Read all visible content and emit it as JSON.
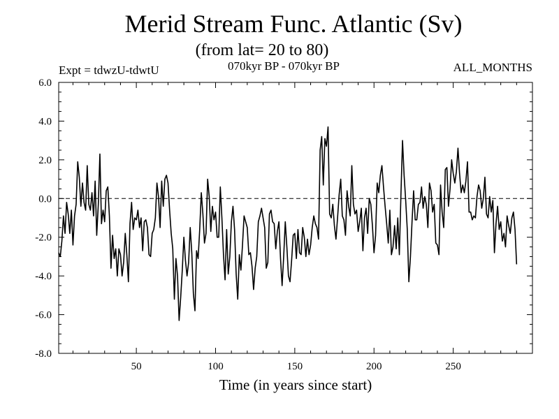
{
  "header": {
    "left": "Expt = tdwzU-tdwtU",
    "center": "070kyr BP - 070kyr BP",
    "right": "ALL_MONTHS"
  },
  "chart_data": {
    "type": "line",
    "title": "Merid Stream Func. Atlantic (Sv)",
    "subtitle": "(from lat= 20 to 80)",
    "xlabel": "Time (in years since start)",
    "ylabel": "",
    "xlim": [
      1,
      300
    ],
    "ylim": [
      -8,
      6
    ],
    "x_ticks": [
      50,
      100,
      150,
      200,
      250
    ],
    "y_ticks": [
      "-8.0",
      "-6.0",
      "-4.0",
      "-2.0",
      "0.0",
      "2.0",
      "4.0",
      "6.0"
    ],
    "grid": false,
    "reference_line": {
      "y": 0,
      "style": "dashed"
    },
    "series": [
      {
        "x_start": 1,
        "x_step": 1,
        "values": [
          -2.8,
          -3.0,
          -2.2,
          -0.9,
          -1.8,
          -0.2,
          -0.8,
          -1.8,
          -0.6,
          -2.4,
          -0.9,
          -0.3,
          1.9,
          1.1,
          -0.4,
          0.8,
          -0.2,
          -0.6,
          1.7,
          -0.3,
          -0.6,
          0.3,
          -0.9,
          0.9,
          -1.9,
          -0.3,
          2.3,
          -1.3,
          -0.6,
          -1.2,
          0.4,
          0.6,
          -0.9,
          -3.6,
          -1.9,
          -3.1,
          -2.6,
          -4.0,
          -2.6,
          -2.9,
          -4.0,
          -3.3,
          -1.8,
          -2.9,
          -4.3,
          -1.3,
          -0.2,
          -1.6,
          -1.0,
          -1.1,
          -0.6,
          -1.5,
          -1.0,
          -2.7,
          -1.2,
          -1.1,
          -1.5,
          -2.9,
          -3.0,
          -1.8,
          -1.6,
          -1.0,
          0.8,
          0.1,
          -1.5,
          0.9,
          -0.4,
          1.0,
          1.2,
          0.8,
          -0.6,
          -1.8,
          -2.6,
          -5.2,
          -3.1,
          -4.0,
          -6.3,
          -5.1,
          -3.7,
          -2.0,
          -3.2,
          -4.0,
          -3.3,
          -1.5,
          -2.8,
          -4.9,
          -5.8,
          -2.7,
          -3.1,
          -1.6,
          0.3,
          -0.8,
          -2.3,
          -1.8,
          1.0,
          0.1,
          -1.7,
          -0.4,
          -1.1,
          -0.7,
          -2.0,
          -2.0,
          0.6,
          -1.0,
          -2.9,
          -4.2,
          -1.6,
          -3.9,
          -3.0,
          -1.2,
          -0.4,
          -1.6,
          -3.9,
          -5.2,
          -2.9,
          -3.7,
          -2.4,
          -0.9,
          -1.2,
          -1.5,
          -2.9,
          -2.8,
          -3.5,
          -4.7,
          -3.6,
          -3.0,
          -1.2,
          -0.9,
          -0.5,
          -1.0,
          -1.5,
          -3.6,
          -3.3,
          -0.8,
          -0.6,
          -1.2,
          -1.3,
          -2.6,
          -1.7,
          -1.2,
          -3.1,
          -4.5,
          -3.0,
          -1.2,
          -2.5,
          -4.0,
          -4.3,
          -3.2,
          -1.9,
          -1.8,
          -3.1,
          -1.6,
          -2.8,
          -2.9,
          -1.5,
          -2.0,
          -3.0,
          -2.1,
          -2.9,
          -2.4,
          -1.5,
          -0.9,
          -1.3,
          -1.5,
          -2.1,
          2.5,
          3.2,
          0.7,
          3.1,
          2.7,
          3.7,
          -0.8,
          -1.0,
          -0.3,
          -1.4,
          -2.1,
          -1.0,
          0.2,
          1.0,
          -0.9,
          -1.1,
          -1.9,
          0.4,
          -0.4,
          -0.9,
          1.7,
          -0.3,
          -0.8,
          -0.6,
          -1.7,
          -1.2,
          -0.5,
          -2.7,
          -1.0,
          -0.5,
          -1.8,
          0.0,
          -0.3,
          -1.4,
          -2.8,
          -1.9,
          0.8,
          0.3,
          1.2,
          1.7,
          0.6,
          -0.4,
          -1.3,
          -2.3,
          -0.6,
          -2.9,
          -2.5,
          -1.4,
          -2.6,
          -1.0,
          -2.9,
          0.2,
          3.0,
          1.2,
          -0.1,
          -1.6,
          -4.3,
          -3.0,
          -1.2,
          0.4,
          -1.1,
          -1.1,
          -0.3,
          -0.2,
          0.6,
          -0.5,
          0.1,
          -0.3,
          -1.5,
          0.8,
          0.4,
          -0.7,
          -0.3,
          -2.3,
          -2.4,
          -2.9,
          0.7,
          -0.7,
          -1.5,
          1.5,
          1.6,
          -0.4,
          0.5,
          2.0,
          1.3,
          0.8,
          1.4,
          2.6,
          1.3,
          0.3,
          0.7,
          0.3,
          0.9,
          1.9,
          -0.7,
          -0.7,
          -1.1,
          -0.9,
          -1.0,
          0.1,
          0.7,
          0.4,
          -0.5,
          0.0,
          1.1,
          -0.8,
          -1.0,
          0.1,
          -0.7,
          -0.1,
          -2.8,
          -1.3,
          -0.4,
          -1.6,
          -1.2,
          -2.2,
          -1.8,
          -2.5,
          -0.9,
          -1.4,
          -1.8,
          -1.0,
          -0.7,
          -1.6,
          -3.4
        ]
      }
    ]
  }
}
